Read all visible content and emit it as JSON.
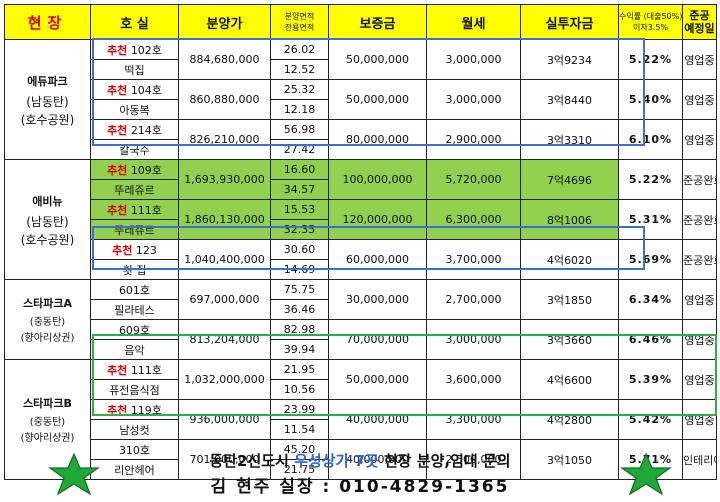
{
  "header": {
    "site": "현장",
    "unit": "호 실",
    "price": "분양가",
    "area_top": "분양면적",
    "area_bottom": "전용면적",
    "deposit": "보증금",
    "rent": "월세",
    "investment": "실투자금",
    "yield_top": "수익률 (대출50%)",
    "yield_bottom": "이자3.5%",
    "completion_top": "준공",
    "completion_bottom": "예정일"
  },
  "sites": [
    {
      "name": "에듀파크",
      "sub1": "(남동탄)",
      "sub2": "(호수공원)"
    },
    {
      "name": "애비뉴",
      "sub1": "(남동탄)",
      "sub2": "(호수공원)"
    },
    {
      "name": "스타파크A",
      "sub1": "(중동탄)",
      "sub2": "(향아리상권)"
    },
    {
      "name": "스타파크B",
      "sub1": "(중동탄)",
      "sub2": "(향아리상권)"
    }
  ],
  "rows": [
    {
      "rec": "추천",
      "unit": "102호",
      "biz": "떡집",
      "price": "884,680,000",
      "area1": "26.02",
      "area2": "12.52",
      "deposit": "50,000,000",
      "rent": "3,000,000",
      "invest_a": "3억",
      "invest_b": "9234",
      "rate": "5.22%",
      "status": "영업중"
    },
    {
      "rec": "추천",
      "unit": "104호",
      "biz": "아동복",
      "price": "860,880,000",
      "area1": "25.32",
      "area2": "12.18",
      "deposit": "50,000,000",
      "rent": "3,000,000",
      "invest_a": "3억",
      "invest_b": "8440",
      "rate": "5.40%",
      "status": "영업중"
    },
    {
      "rec": "추천",
      "unit": "214호",
      "biz": "칼국수",
      "price": "826,210,000",
      "area1": "56.98",
      "area2": "27.42",
      "deposit": "80,000,000",
      "rent": "2,900,000",
      "invest_a": "3억",
      "invest_b": "3310",
      "rate": "6.10%",
      "status": "영업중"
    },
    {
      "rec": "추천",
      "unit": "109호",
      "biz": "뚜레쥬르",
      "price": "1,693,930,000",
      "area1": "16.60",
      "area2": "34.57",
      "deposit": "100,000,000",
      "rent": "5,720,000",
      "invest_a": "7억",
      "invest_b": "4696",
      "rate": "5.22%",
      "status": "준공완료"
    },
    {
      "rec": "추천",
      "unit": "111호",
      "biz": "뚜레쥬르",
      "price": "1,860,130,000",
      "area1": "15.53",
      "area2": "32.35",
      "deposit": "120,000,000",
      "rent": "6,300,000",
      "invest_a": "8억",
      "invest_b": "1006",
      "rate": "5.31%",
      "status": "준공완료"
    },
    {
      "rec": "추천",
      "unit": "123",
      "biz": "횟 집",
      "price": "1,040,400,000",
      "area1": "30.60",
      "area2": "14.69",
      "deposit": "60,000,000",
      "rent": "3,700,000",
      "invest_a": "4억",
      "invest_b": "6020",
      "rate": "5.69%",
      "status": "준공완료"
    },
    {
      "rec": "",
      "unit": "601호",
      "biz": "필라테스",
      "price": "697,000,000",
      "area1": "75.75",
      "area2": "36.46",
      "deposit": "30,000,000",
      "rent": "2,700,000",
      "invest_a": "3억",
      "invest_b": "1850",
      "rate": "6.34%",
      "status": "영업중"
    },
    {
      "rec": "",
      "unit": "609호",
      "biz": "음악",
      "price": "813,204,000",
      "area1": "82.98",
      "area2": "39.94",
      "deposit": "70,000,000",
      "rent": "3,000,000",
      "invest_a": "3억",
      "invest_b": "3660",
      "rate": "6.46%",
      "status": "영업중"
    },
    {
      "rec": "추천",
      "unit": "111호",
      "biz": "퓨전음식점",
      "price": "1,032,000,000",
      "area1": "21.95",
      "area2": "10.56",
      "deposit": "50,000,000",
      "rent": "3,600,000",
      "invest_a": "4억",
      "invest_b": "6600",
      "rate": "5.39%",
      "status": "영업중"
    },
    {
      "rec": "추천",
      "unit": "119호",
      "biz": "남성컷",
      "price": "936,000,000",
      "area1": "23.99",
      "area2": "11.54",
      "deposit": "40,000,000",
      "rent": "3,300,000",
      "invest_a": "4억",
      "invest_b": "2800",
      "rate": "5.42%",
      "status": "영업중"
    },
    {
      "rec": "",
      "unit": "310호",
      "biz": "리안헤어",
      "price": "701,000,000",
      "area1": "45.20",
      "area2": "21.75",
      "deposit": "40,000,000",
      "rent": "2,500,000",
      "invest_a": "3억",
      "invest_b": "1050",
      "rate": "5.71%",
      "status": "인테리어중"
    }
  ],
  "footer": {
    "line1_pre": "동탄2신도시 ",
    "line1_highlight": "우성상가 7곳",
    "line1_post": " 현장 분양,임대 문의",
    "contact": "김 현주 실장 : 010-4829-1365"
  },
  "colors": {
    "header_bg": "#ffff00",
    "highlight_rows": "#92d050",
    "recommend": "#e00000",
    "box_blue": "#3b6fd6",
    "box_green": "#2fae43"
  }
}
